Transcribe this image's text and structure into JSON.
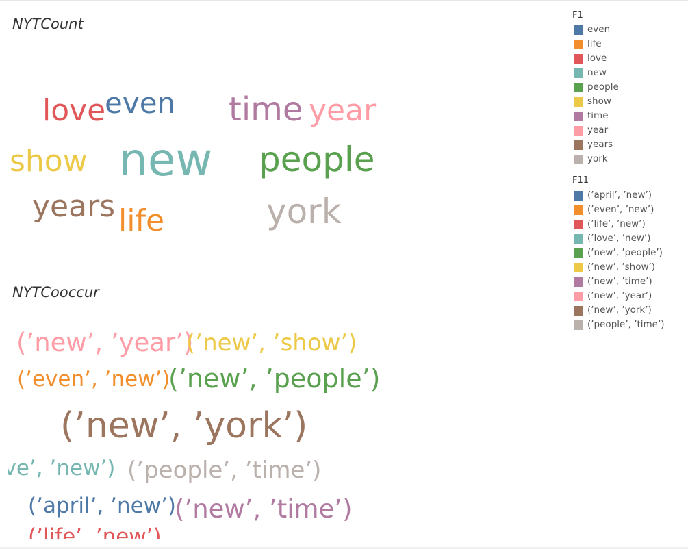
{
  "chart_data": [
    {
      "type": "wordcloud",
      "title": "NYTCount",
      "words": [
        {
          "text": "love",
          "weight": 2,
          "color": "#e15759"
        },
        {
          "text": "even",
          "weight": 2,
          "color": "#4e79a7"
        },
        {
          "text": "time",
          "weight": 2,
          "color": "#b07aa1"
        },
        {
          "text": "year",
          "weight": 2,
          "color": "#ff9da7"
        },
        {
          "text": "show",
          "weight": 2,
          "color": "#edc948"
        },
        {
          "text": "new",
          "weight": 5,
          "color": "#76b7b2"
        },
        {
          "text": "people",
          "weight": 3,
          "color": "#59a14f"
        },
        {
          "text": "years",
          "weight": 2,
          "color": "#9c755f"
        },
        {
          "text": "life",
          "weight": 2,
          "color": "#f28e2b"
        },
        {
          "text": "york",
          "weight": 3,
          "color": "#bab0ac"
        }
      ]
    },
    {
      "type": "wordcloud",
      "title": "NYTCooccur",
      "words": [
        {
          "text": "(’new’, ’year’)",
          "weight": 2,
          "color": "#ff9da7"
        },
        {
          "text": "(’new’, ’show’)",
          "weight": 2,
          "color": "#edc948"
        },
        {
          "text": "(’even’, ’new’)",
          "weight": 1,
          "color": "#f28e2b"
        },
        {
          "text": "(’new’, ’people’)",
          "weight": 3,
          "color": "#59a14f"
        },
        {
          "text": "(’new’, ’york’)",
          "weight": 5,
          "color": "#9c755f"
        },
        {
          "text": "(’love’, ’new’)",
          "weight": 2,
          "color": "#76b7b2"
        },
        {
          "text": "(’people’, ’time’)",
          "weight": 2,
          "color": "#bab0ac"
        },
        {
          "text": "(’april’, ’new’)",
          "weight": 2,
          "color": "#4e79a7"
        },
        {
          "text": "(’new’, ’time’)",
          "weight": 3,
          "color": "#b07aa1"
        },
        {
          "text": "(’life’, ’new’)",
          "weight": 2,
          "color": "#e15759"
        }
      ]
    }
  ],
  "legends": [
    {
      "title": "F1",
      "items": [
        {
          "label": "even",
          "color": "#4e79a7"
        },
        {
          "label": "life",
          "color": "#f28e2b"
        },
        {
          "label": "love",
          "color": "#e15759"
        },
        {
          "label": "new",
          "color": "#76b7b2"
        },
        {
          "label": "people",
          "color": "#59a14f"
        },
        {
          "label": "show",
          "color": "#edc948"
        },
        {
          "label": "time",
          "color": "#b07aa1"
        },
        {
          "label": "year",
          "color": "#ff9da7"
        },
        {
          "label": "years",
          "color": "#9c755f"
        },
        {
          "label": "york",
          "color": "#bab0ac"
        }
      ]
    },
    {
      "title": "F11",
      "items": [
        {
          "label": "(’april’, ’new’)",
          "color": "#4e79a7"
        },
        {
          "label": "(’even’, ’new’)",
          "color": "#f28e2b"
        },
        {
          "label": "(’life’, ’new’)",
          "color": "#e15759"
        },
        {
          "label": "(’love’, ’new’)",
          "color": "#76b7b2"
        },
        {
          "label": "(’new’, ’people’)",
          "color": "#59a14f"
        },
        {
          "label": "(’new’, ’show’)",
          "color": "#edc948"
        },
        {
          "label": "(’new’, ’time’)",
          "color": "#b07aa1"
        },
        {
          "label": "(’new’, ’year’)",
          "color": "#ff9da7"
        },
        {
          "label": "(’new’, ’york’)",
          "color": "#9c755f"
        },
        {
          "label": "(’people’, ’time’)",
          "color": "#bab0ac"
        }
      ]
    }
  ]
}
